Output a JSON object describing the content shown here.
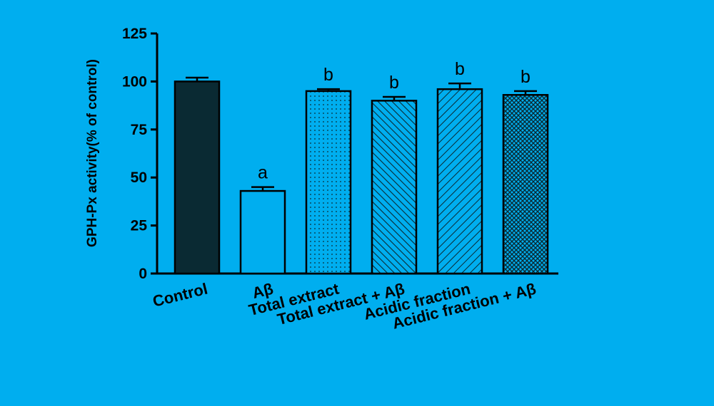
{
  "chart_data": {
    "type": "bar",
    "title": "",
    "xlabel": "",
    "ylabel": "GPH-Px activity(% of control)",
    "ylim": [
      0,
      125
    ],
    "yticks": [
      0,
      25,
      50,
      75,
      100,
      125
    ],
    "grid": false,
    "categories": [
      "Control",
      "Aβ",
      "Total extract",
      "Total extract + Aβ",
      "Acidic fraction",
      "Acidic fraction + Aβ"
    ],
    "values": [
      100,
      43,
      95,
      90,
      96,
      93
    ],
    "errors": [
      2,
      2,
      1,
      2,
      3,
      2
    ],
    "significance": [
      "",
      "a",
      "b",
      "b",
      "b",
      "b"
    ],
    "bar_fills": [
      "solid",
      "empty",
      "dots",
      "diagonal-dense",
      "diagonal",
      "crosshatch"
    ],
    "colors": {
      "background": "#00aeef",
      "bar_dark": "#0a2a33",
      "axis": "#000000"
    }
  }
}
